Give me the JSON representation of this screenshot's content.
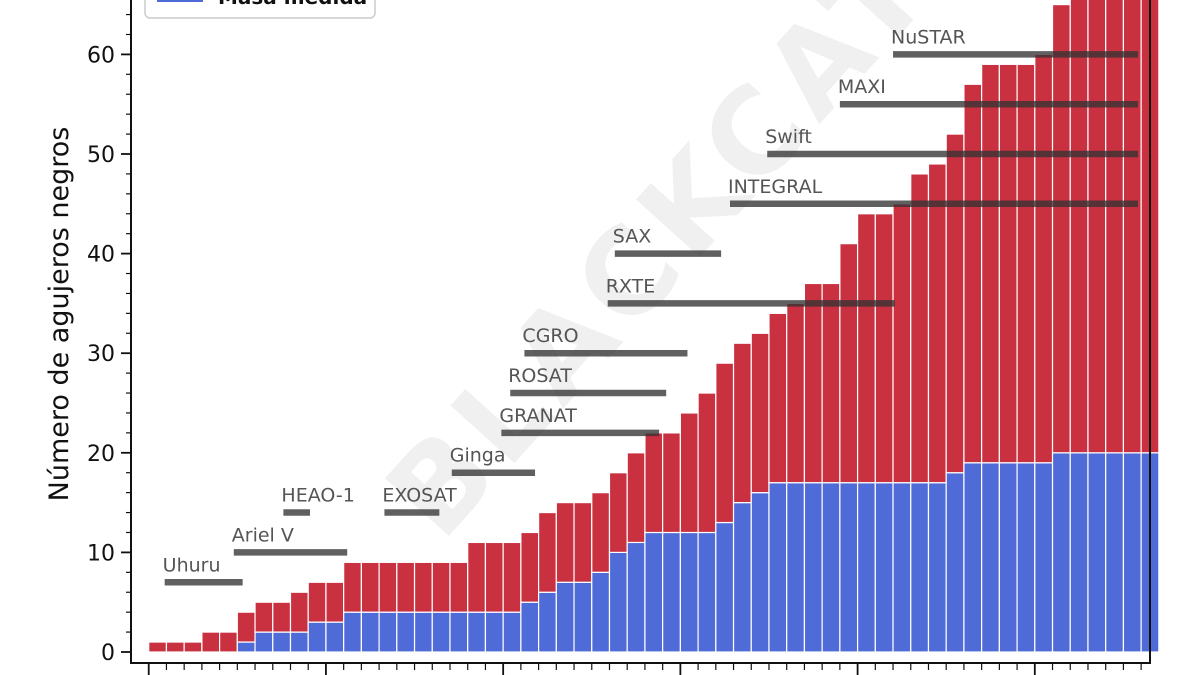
{
  "chart_data": {
    "type": "bar",
    "stacked": true,
    "ylabel": "Número de agujeros negros",
    "xlabel": "",
    "ylim": [
      0,
      66
    ],
    "yticks": [
      0,
      10,
      20,
      30,
      40,
      50,
      60
    ],
    "legend": {
      "placement": "top-left"
    },
    "watermark": "BLACKCAT",
    "series": [
      {
        "name": "Masa medida",
        "color": "#4f6bd8",
        "values": [
          0,
          0,
          0,
          0,
          0,
          1,
          2,
          2,
          2,
          3,
          3,
          4,
          4,
          4,
          4,
          4,
          4,
          4,
          4,
          4,
          4,
          5,
          6,
          7,
          7,
          8,
          10,
          11,
          12,
          12,
          12,
          12,
          13,
          15,
          16,
          17,
          17,
          17,
          17,
          17,
          17,
          17,
          17,
          17,
          17,
          18,
          19,
          19,
          19,
          19,
          19,
          20,
          20,
          20,
          20,
          20,
          20
        ]
      },
      {
        "color": "#c93040",
        "values": [
          1,
          1,
          1,
          2,
          2,
          3,
          3,
          3,
          4,
          4,
          4,
          5,
          5,
          5,
          5,
          5,
          5,
          5,
          7,
          7,
          7,
          7,
          8,
          8,
          8,
          8,
          8,
          9,
          10,
          10,
          12,
          14,
          16,
          16,
          16,
          17,
          18,
          20,
          20,
          24,
          27,
          27,
          28,
          31,
          32,
          34,
          38,
          40,
          40,
          40,
          41,
          45,
          47,
          47,
          47,
          47,
          47
        ]
      }
    ],
    "missions": [
      {
        "name": "Uhuru",
        "start": 1970.9,
        "end": 1975.3,
        "level": 7
      },
      {
        "name": "Ariel V",
        "start": 1974.8,
        "end": 1981.2,
        "level": 10
      },
      {
        "name": "HEAO-1",
        "start": 1977.6,
        "end": 1979.1,
        "level": 14
      },
      {
        "name": "EXOSAT",
        "start": 1983.3,
        "end": 1986.4,
        "level": 14
      },
      {
        "name": "Ginga",
        "start": 1987.1,
        "end": 1991.8,
        "level": 18
      },
      {
        "name": "GRANAT",
        "start": 1989.9,
        "end": 1998.8,
        "level": 22
      },
      {
        "name": "ROSAT",
        "start": 1990.4,
        "end": 1999.2,
        "level": 26
      },
      {
        "name": "CGRO",
        "start": 1991.2,
        "end": 2000.4,
        "level": 30
      },
      {
        "name": "RXTE",
        "start": 1995.9,
        "end": 2012.1,
        "level": 35
      },
      {
        "name": "SAX",
        "start": 1996.3,
        "end": 2002.3,
        "level": 40
      },
      {
        "name": "INTEGRAL",
        "start": 2002.8,
        "end": 2026.5,
        "level": 45
      },
      {
        "name": "Swift",
        "start": 2004.9,
        "end": 2026.5,
        "level": 50
      },
      {
        "name": "MAXI",
        "start": 2009.0,
        "end": 2026.5,
        "level": 55
      },
      {
        "name": "NuSTAR",
        "start": 2012.0,
        "end": 2026.5,
        "level": 60
      }
    ],
    "x_range": [
      1969.0,
      2026.5
    ],
    "bar_start_year": 1970
  }
}
